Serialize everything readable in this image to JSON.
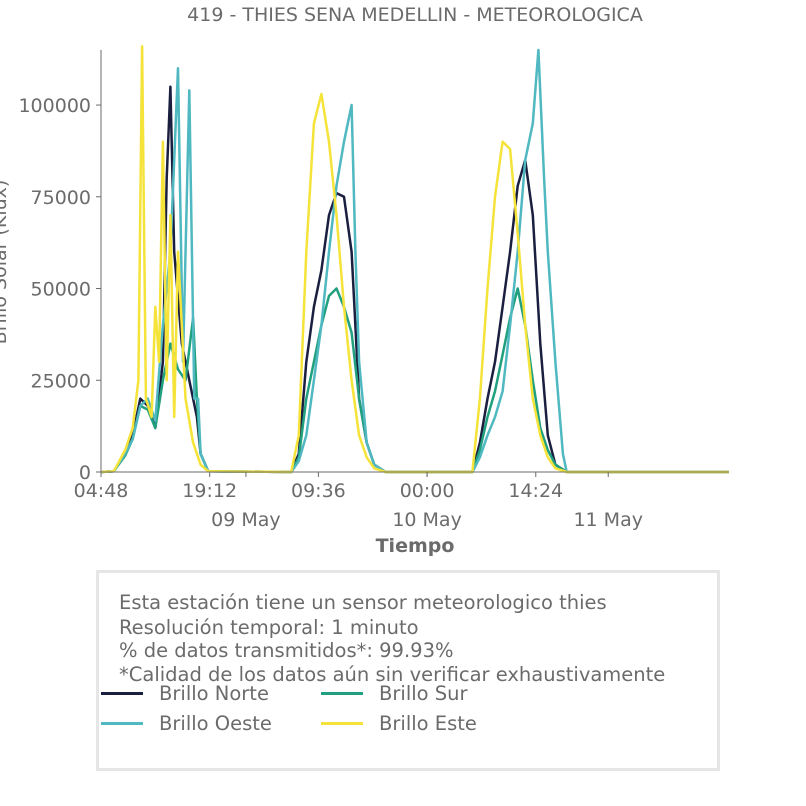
{
  "chart_data": {
    "type": "line",
    "title": "419 - THIES SENA MEDELLIN - METEOROLOGICA",
    "xlabel": "Tiempo",
    "ylabel": "Brillo Solar (Klux)",
    "x_start": "2023-05-08 04:48",
    "x_end": "2023-05-11 16:00",
    "ylim": [
      0,
      115000
    ],
    "yticks": [
      0,
      25000,
      50000,
      75000,
      100000
    ],
    "ytick_labels": [
      "0",
      "25000",
      "50000",
      "75000",
      "100000"
    ],
    "xticks": [
      "2023-05-08 04:48",
      "2023-05-08 19:12",
      "2023-05-09 09:36",
      "2023-05-10 00:00",
      "2023-05-10 14:24"
    ],
    "xtick_labels": [
      "04:48",
      "19:12",
      "09:36",
      "00:00",
      "14:24"
    ],
    "xdate_labels": [
      {
        "at": "2023-05-09 00:00",
        "label": "09 May"
      },
      {
        "at": "2023-05-10 00:00",
        "label": "10 May"
      },
      {
        "at": "2023-05-11 00:00",
        "label": "11 May"
      }
    ],
    "grid": false,
    "series": [
      {
        "name": "Brillo Norte",
        "color": "#1b1f3f",
        "points": [
          [
            "2023-05-08 04:48",
            0
          ],
          [
            "2023-05-08 06:30",
            200
          ],
          [
            "2023-05-08 08:00",
            5000
          ],
          [
            "2023-05-08 09:00",
            10000
          ],
          [
            "2023-05-08 10:00",
            20000
          ],
          [
            "2023-05-08 11:00",
            18000
          ],
          [
            "2023-05-08 12:00",
            12000
          ],
          [
            "2023-05-08 13:00",
            30000
          ],
          [
            "2023-05-08 13:30",
            80000
          ],
          [
            "2023-05-08 14:00",
            105000
          ],
          [
            "2023-05-08 14:30",
            60000
          ],
          [
            "2023-05-08 15:30",
            35000
          ],
          [
            "2023-05-08 16:30",
            25000
          ],
          [
            "2023-05-08 17:30",
            15000
          ],
          [
            "2023-05-08 18:00",
            5000
          ],
          [
            "2023-05-08 19:00",
            200
          ],
          [
            "2023-05-09 06:00",
            0
          ],
          [
            "2023-05-09 07:00",
            5000
          ],
          [
            "2023-05-09 08:00",
            30000
          ],
          [
            "2023-05-09 09:00",
            45000
          ],
          [
            "2023-05-09 10:00",
            55000
          ],
          [
            "2023-05-09 11:00",
            70000
          ],
          [
            "2023-05-09 12:00",
            76000
          ],
          [
            "2023-05-09 13:00",
            75000
          ],
          [
            "2023-05-09 14:00",
            60000
          ],
          [
            "2023-05-09 15:00",
            20000
          ],
          [
            "2023-05-09 16:00",
            8000
          ],
          [
            "2023-05-09 17:00",
            2000
          ],
          [
            "2023-05-09 18:30",
            0
          ],
          [
            "2023-05-10 06:00",
            0
          ],
          [
            "2023-05-10 07:00",
            8000
          ],
          [
            "2023-05-10 08:00",
            20000
          ],
          [
            "2023-05-10 09:00",
            30000
          ],
          [
            "2023-05-10 10:00",
            45000
          ],
          [
            "2023-05-10 11:00",
            60000
          ],
          [
            "2023-05-10 12:00",
            78000
          ],
          [
            "2023-05-10 13:00",
            85000
          ],
          [
            "2023-05-10 14:00",
            70000
          ],
          [
            "2023-05-10 15:00",
            35000
          ],
          [
            "2023-05-10 16:00",
            10000
          ],
          [
            "2023-05-10 17:00",
            2000
          ],
          [
            "2023-05-10 18:30",
            0
          ],
          [
            "2023-05-11 16:00",
            0
          ]
        ]
      },
      {
        "name": "Brillo Sur",
        "color": "#21a07f",
        "points": [
          [
            "2023-05-08 04:48",
            0
          ],
          [
            "2023-05-08 06:30",
            200
          ],
          [
            "2023-05-08 08:00",
            4500
          ],
          [
            "2023-05-08 09:00",
            9000
          ],
          [
            "2023-05-08 10:00",
            18000
          ],
          [
            "2023-05-08 11:00",
            17000
          ],
          [
            "2023-05-08 12:00",
            12000
          ],
          [
            "2023-05-08 13:00",
            25000
          ],
          [
            "2023-05-08 14:00",
            35000
          ],
          [
            "2023-05-08 15:00",
            28000
          ],
          [
            "2023-05-08 16:00",
            25000
          ],
          [
            "2023-05-08 17:00",
            42000
          ],
          [
            "2023-05-08 17:30",
            20000
          ],
          [
            "2023-05-08 18:00",
            5000
          ],
          [
            "2023-05-08 19:00",
            200
          ],
          [
            "2023-05-09 06:00",
            0
          ],
          [
            "2023-05-09 07:00",
            4000
          ],
          [
            "2023-05-09 08:00",
            20000
          ],
          [
            "2023-05-09 09:00",
            30000
          ],
          [
            "2023-05-09 10:00",
            40000
          ],
          [
            "2023-05-09 11:00",
            48000
          ],
          [
            "2023-05-09 12:00",
            50000
          ],
          [
            "2023-05-09 13:00",
            45000
          ],
          [
            "2023-05-09 14:00",
            38000
          ],
          [
            "2023-05-09 15:00",
            20000
          ],
          [
            "2023-05-09 16:00",
            8000
          ],
          [
            "2023-05-09 17:00",
            2000
          ],
          [
            "2023-05-09 18:30",
            0
          ],
          [
            "2023-05-10 06:00",
            0
          ],
          [
            "2023-05-10 07:00",
            6000
          ],
          [
            "2023-05-10 08:00",
            15000
          ],
          [
            "2023-05-10 09:00",
            22000
          ],
          [
            "2023-05-10 10:00",
            32000
          ],
          [
            "2023-05-10 11:00",
            42000
          ],
          [
            "2023-05-10 12:00",
            50000
          ],
          [
            "2023-05-10 13:00",
            40000
          ],
          [
            "2023-05-10 14:00",
            25000
          ],
          [
            "2023-05-10 15:00",
            12000
          ],
          [
            "2023-05-10 16:00",
            6000
          ],
          [
            "2023-05-10 17:00",
            2000
          ],
          [
            "2023-05-10 18:30",
            0
          ],
          [
            "2023-05-11 16:00",
            0
          ]
        ]
      },
      {
        "name": "Brillo Oeste",
        "color": "#4fb8c0",
        "points": [
          [
            "2023-05-08 04:48",
            0
          ],
          [
            "2023-05-08 06:30",
            200
          ],
          [
            "2023-05-08 08:00",
            5000
          ],
          [
            "2023-05-08 09:00",
            9000
          ],
          [
            "2023-05-08 10:00",
            18000
          ],
          [
            "2023-05-08 11:00",
            20000
          ],
          [
            "2023-05-08 12:00",
            14000
          ],
          [
            "2023-05-08 13:00",
            40000
          ],
          [
            "2023-05-08 14:00",
            60000
          ],
          [
            "2023-05-08 15:00",
            110000
          ],
          [
            "2023-05-08 15:40",
            30000
          ],
          [
            "2023-05-08 16:30",
            104000
          ],
          [
            "2023-05-08 17:10",
            20000
          ],
          [
            "2023-05-08 17:40",
            20000
          ],
          [
            "2023-05-08 18:00",
            5000
          ],
          [
            "2023-05-08 19:00",
            200
          ],
          [
            "2023-05-09 06:00",
            0
          ],
          [
            "2023-05-09 07:00",
            3000
          ],
          [
            "2023-05-09 08:00",
            10000
          ],
          [
            "2023-05-09 09:00",
            25000
          ],
          [
            "2023-05-09 10:00",
            40000
          ],
          [
            "2023-05-09 11:00",
            60000
          ],
          [
            "2023-05-09 12:00",
            78000
          ],
          [
            "2023-05-09 13:00",
            90000
          ],
          [
            "2023-05-09 14:00",
            100000
          ],
          [
            "2023-05-09 14:30",
            60000
          ],
          [
            "2023-05-09 15:00",
            30000
          ],
          [
            "2023-05-09 16:00",
            8000
          ],
          [
            "2023-05-09 17:00",
            2000
          ],
          [
            "2023-05-09 18:30",
            0
          ],
          [
            "2023-05-10 06:00",
            0
          ],
          [
            "2023-05-10 07:00",
            4000
          ],
          [
            "2023-05-10 08:00",
            10000
          ],
          [
            "2023-05-10 09:00",
            15000
          ],
          [
            "2023-05-10 10:00",
            22000
          ],
          [
            "2023-05-10 11:00",
            40000
          ],
          [
            "2023-05-10 12:00",
            60000
          ],
          [
            "2023-05-10 13:00",
            85000
          ],
          [
            "2023-05-10 14:00",
            95000
          ],
          [
            "2023-05-10 14:45",
            115000
          ],
          [
            "2023-05-10 15:30",
            80000
          ],
          [
            "2023-05-10 16:00",
            60000
          ],
          [
            "2023-05-10 17:00",
            30000
          ],
          [
            "2023-05-10 18:00",
            5000
          ],
          [
            "2023-05-10 18:30",
            0
          ],
          [
            "2023-05-11 16:00",
            0
          ]
        ]
      },
      {
        "name": "Brillo Este",
        "color": "#f5e33a",
        "points": [
          [
            "2023-05-08 04:48",
            0
          ],
          [
            "2023-05-08 06:30",
            200
          ],
          [
            "2023-05-08 08:00",
            6000
          ],
          [
            "2023-05-08 09:00",
            12000
          ],
          [
            "2023-05-08 09:45",
            25000
          ],
          [
            "2023-05-08 10:15",
            116000
          ],
          [
            "2023-05-08 10:45",
            20000
          ],
          [
            "2023-05-08 11:30",
            15000
          ],
          [
            "2023-05-08 12:00",
            45000
          ],
          [
            "2023-05-08 12:30",
            30000
          ],
          [
            "2023-05-08 13:00",
            90000
          ],
          [
            "2023-05-08 13:30",
            25000
          ],
          [
            "2023-05-08 14:00",
            70000
          ],
          [
            "2023-05-08 14:30",
            15000
          ],
          [
            "2023-05-08 15:00",
            60000
          ],
          [
            "2023-05-08 16:00",
            20000
          ],
          [
            "2023-05-08 17:00",
            8000
          ],
          [
            "2023-05-08 18:00",
            2000
          ],
          [
            "2023-05-08 19:00",
            200
          ],
          [
            "2023-05-09 06:00",
            0
          ],
          [
            "2023-05-09 07:00",
            10000
          ],
          [
            "2023-05-09 08:00",
            60000
          ],
          [
            "2023-05-09 09:00",
            95000
          ],
          [
            "2023-05-09 10:00",
            103000
          ],
          [
            "2023-05-09 11:00",
            90000
          ],
          [
            "2023-05-09 12:00",
            70000
          ],
          [
            "2023-05-09 13:00",
            45000
          ],
          [
            "2023-05-09 14:00",
            25000
          ],
          [
            "2023-05-09 15:00",
            10000
          ],
          [
            "2023-05-09 16:00",
            4000
          ],
          [
            "2023-05-09 17:00",
            1000
          ],
          [
            "2023-05-09 18:30",
            0
          ],
          [
            "2023-05-10 06:00",
            0
          ],
          [
            "2023-05-10 07:00",
            20000
          ],
          [
            "2023-05-10 08:00",
            50000
          ],
          [
            "2023-05-10 09:00",
            75000
          ],
          [
            "2023-05-10 10:00",
            90000
          ],
          [
            "2023-05-10 11:00",
            88000
          ],
          [
            "2023-05-10 12:00",
            65000
          ],
          [
            "2023-05-10 13:00",
            40000
          ],
          [
            "2023-05-10 14:00",
            20000
          ],
          [
            "2023-05-10 15:00",
            10000
          ],
          [
            "2023-05-10 16:00",
            4000
          ],
          [
            "2023-05-10 17:00",
            1000
          ],
          [
            "2023-05-10 18:30",
            0
          ],
          [
            "2023-05-11 16:00",
            0
          ]
        ]
      }
    ],
    "legend_position": "bottom"
  },
  "info": {
    "line1": "Esta estación tiene un sensor meteorologico thies",
    "line2": "Resolución temporal: 1 minuto",
    "line3": "% de datos transmitidos*: 99.93%",
    "line4": "*Calidad de los datos aún sin verificar exhaustivamente"
  },
  "legend": [
    {
      "label": "Brillo Norte",
      "color": "#1b1f3f"
    },
    {
      "label": "Brillo Sur",
      "color": "#21a07f"
    },
    {
      "label": "Brillo Oeste",
      "color": "#4fb8c0"
    },
    {
      "label": "Brillo Este",
      "color": "#f5e33a"
    }
  ]
}
